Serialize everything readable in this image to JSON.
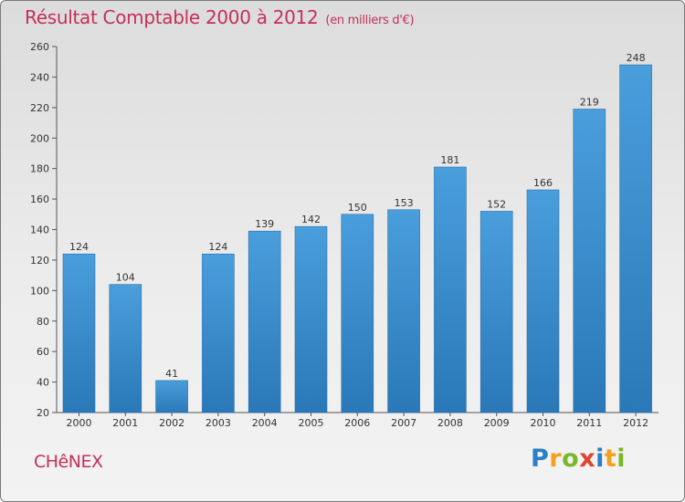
{
  "chart_data": {
    "type": "bar",
    "title": "Résultat Comptable 2000 à 2012",
    "subtitle": "(en milliers d'€)",
    "categories": [
      "2000",
      "2001",
      "2002",
      "2003",
      "2004",
      "2005",
      "2006",
      "2007",
      "2008",
      "2009",
      "2010",
      "2011",
      "2012"
    ],
    "values": [
      124,
      104,
      41,
      124,
      139,
      142,
      150,
      153,
      181,
      152,
      166,
      219,
      248
    ],
    "ylim": [
      20,
      260
    ],
    "yticks": [
      20,
      40,
      60,
      80,
      100,
      120,
      140,
      160,
      180,
      200,
      220,
      240,
      260
    ],
    "grid": false,
    "xlabel": "",
    "ylabel": "",
    "bar_color": "#4a9edc",
    "bar_color_dark": "#2a78b8"
  },
  "commune": "CHêNEX",
  "logo": {
    "letters": [
      "P",
      "r",
      "o",
      "x",
      "i",
      "t",
      "i"
    ]
  },
  "colors": {
    "title": "#c4305a",
    "axis": "#333333"
  }
}
